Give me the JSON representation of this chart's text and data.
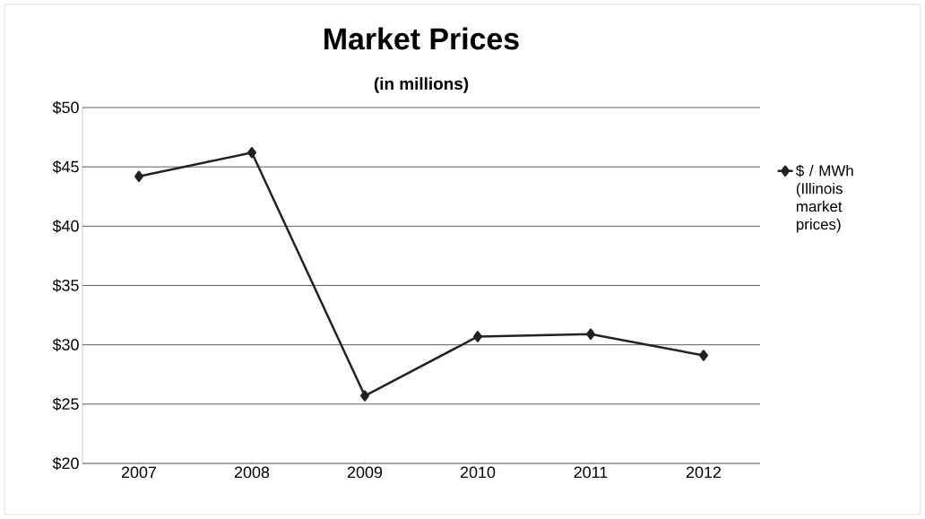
{
  "chart_data": {
    "type": "line",
    "title": "Market Prices",
    "subtitle": "(in millions)",
    "categories": [
      "2007",
      "2008",
      "2009",
      "2010",
      "2011",
      "2012"
    ],
    "series": [
      {
        "name": "$ / MWh (Illinois market prices)",
        "color": "#222222",
        "values": [
          44.2,
          46.2,
          25.7,
          30.7,
          30.9,
          29.1
        ]
      }
    ],
    "ylim": [
      20,
      50
    ],
    "yticks": [
      {
        "value": 20,
        "label": "$20"
      },
      {
        "value": 25,
        "label": "$25"
      },
      {
        "value": 30,
        "label": "$30"
      },
      {
        "value": 35,
        "label": "$35"
      },
      {
        "value": 40,
        "label": "$40"
      },
      {
        "value": 45,
        "label": "$45"
      },
      {
        "value": 50,
        "label": "$50"
      }
    ],
    "grid": "y",
    "legend": "right",
    "marker": "diamond",
    "line_style": "solid"
  }
}
